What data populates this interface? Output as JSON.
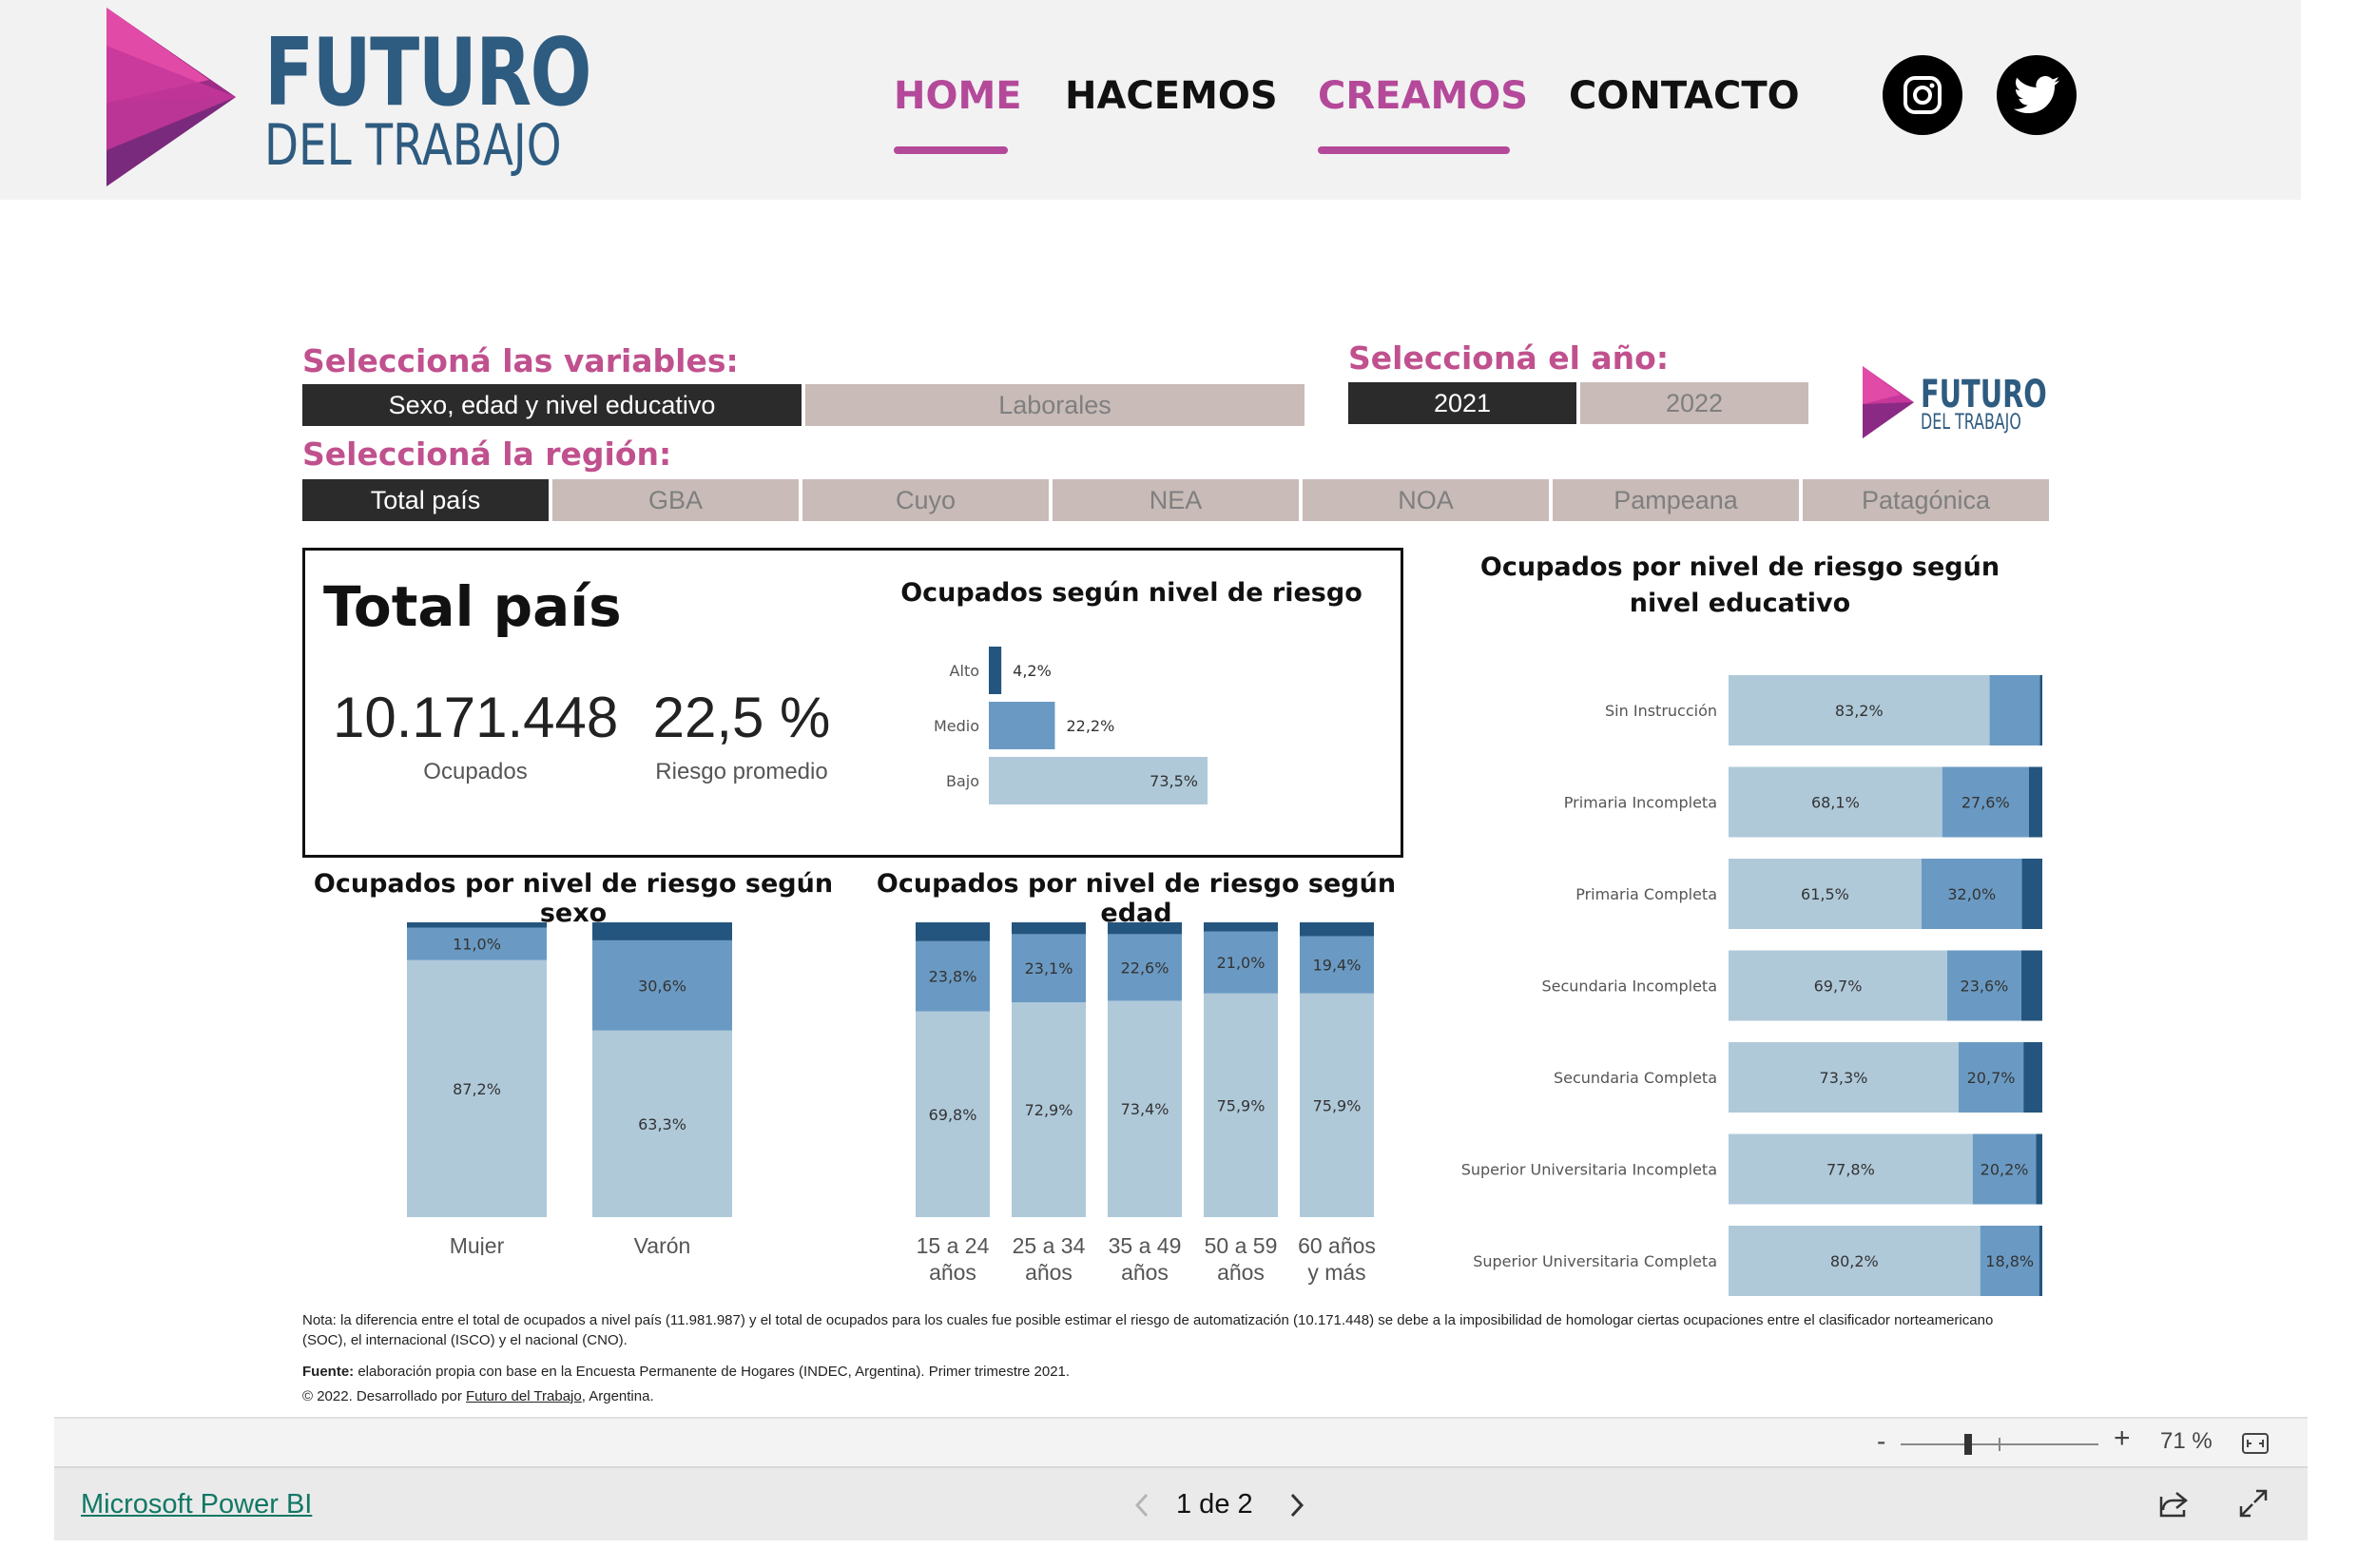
{
  "header": {
    "logo_line1": "FUTURO",
    "logo_line2": "DEL TRABAJO",
    "nav": [
      {
        "label": "HOME",
        "active": true
      },
      {
        "label": "HACEMOS",
        "active": false
      },
      {
        "label": "CREAMOS",
        "active": true
      },
      {
        "label": "CONTACTO",
        "active": false
      }
    ],
    "social_icons": [
      "instagram-icon",
      "twitter-icon"
    ]
  },
  "report": {
    "variables_title": "Seleccioná las variables:",
    "variables": [
      {
        "label": "Sexo, edad y nivel educativo",
        "selected": true
      },
      {
        "label": "Laborales",
        "selected": false
      }
    ],
    "year_title": "Seleccioná el año:",
    "years": [
      {
        "label": "2021",
        "selected": true
      },
      {
        "label": "2022",
        "selected": false
      }
    ],
    "mini_logo_line1": "FUTURO",
    "mini_logo_line2": "DEL TRABAJO",
    "region_title": "Seleccioná la región:",
    "regions": [
      {
        "label": "Total país",
        "selected": true
      },
      {
        "label": "GBA",
        "selected": false
      },
      {
        "label": "Cuyo",
        "selected": false
      },
      {
        "label": "NEA",
        "selected": false
      },
      {
        "label": "NOA",
        "selected": false
      },
      {
        "label": "Pampeana",
        "selected": false
      },
      {
        "label": "Patagónica",
        "selected": false
      }
    ],
    "kpi": {
      "title": "Total país",
      "ocupados_value": "10.171.448",
      "ocupados_label": "Ocupados",
      "riesgo_value": "22,5 %",
      "riesgo_label": "Riesgo promedio"
    },
    "footnote": {
      "nota": "Nota: la diferencia entre el total de ocupados a nivel país (11.981.987) y el total de ocupados para los cuales fue posible estimar el riesgo de automatización (10.171.448) se debe a la imposibilidad de homologar ciertas ocupaciones entre el clasificador norteamericano (SOC), el internacional (ISCO) y el nacional (CNO).",
      "fuente_label": "Fuente:",
      "fuente_text": " elaboración propia con base en la Encuesta Permanente de Hogares (INDEC, Argentina). Primer trimestre 2021.",
      "copyright_prefix": "© 2022. Desarrollado por ",
      "copyright_link": "Futuro del Trabajo",
      "copyright_suffix": ", Argentina."
    },
    "colors": {
      "bajo": "#afc9d9",
      "medio": "#6a9ac3",
      "alto": "#24557e"
    }
  },
  "chart_data": [
    {
      "type": "bar",
      "orientation": "horizontal",
      "title": "Ocupados según nivel de riesgo",
      "categories": [
        "Alto",
        "Medio",
        "Bajo"
      ],
      "values": [
        4.2,
        22.2,
        73.5
      ],
      "labels": [
        "4,2%",
        "22,2%",
        "73,5%"
      ]
    },
    {
      "type": "bar",
      "stacked": true,
      "title": "Ocupados por nivel de riesgo según sexo",
      "categories": [
        "Mujer",
        "Varón"
      ],
      "series": [
        {
          "values": [
            87.2,
            63.3
          ],
          "labels": [
            "87,2%",
            "63,3%"
          ]
        },
        {
          "values": [
            11.0,
            30.6
          ],
          "labels": [
            "11,0%",
            "30,6%"
          ]
        },
        {
          "values": [
            1.8,
            6.1
          ],
          "labels": [
            "",
            ""
          ]
        }
      ]
    },
    {
      "type": "bar",
      "stacked": true,
      "title": "Ocupados por nivel de riesgo según edad",
      "categories": [
        [
          "15 a 24",
          "años"
        ],
        [
          "25 a 34",
          "años"
        ],
        [
          "35 a 49",
          "años"
        ],
        [
          "50 a 59",
          "años"
        ],
        [
          "60 años",
          "y más"
        ]
      ],
      "series": [
        {
          "values": [
            69.8,
            72.9,
            73.4,
            75.9,
            75.9
          ],
          "labels": [
            "69,8%",
            "72,9%",
            "73,4%",
            "75,9%",
            "75,9%"
          ]
        },
        {
          "values": [
            23.8,
            23.1,
            22.6,
            21.0,
            19.4
          ],
          "labels": [
            "23,8%",
            "23,1%",
            "22,6%",
            "21,0%",
            "19,4%"
          ]
        },
        {
          "values": [
            6.4,
            4.0,
            4.0,
            3.1,
            4.7
          ],
          "labels": [
            "",
            "",
            "",
            "",
            ""
          ]
        }
      ]
    },
    {
      "type": "bar",
      "orientation": "horizontal",
      "stacked": true,
      "title": "Ocupados por nivel de riesgo según nivel educativo",
      "categories": [
        "Sin Instrucción",
        "Primaria Incompleta",
        "Primaria Completa",
        "Secundaria Incompleta",
        "Secundaria Completa",
        "Superior Universitaria Incompleta",
        "Superior Universitaria Completa"
      ],
      "series": [
        {
          "values": [
            83.2,
            68.1,
            61.5,
            69.7,
            73.3,
            77.8,
            80.2
          ],
          "labels": [
            "83,2%",
            "68,1%",
            "61,5%",
            "69,7%",
            "73,3%",
            "77,8%",
            "80,2%"
          ]
        },
        {
          "values": [
            16.0,
            27.6,
            32.0,
            23.6,
            20.7,
            20.2,
            18.8
          ],
          "labels": [
            "",
            "27,6%",
            "32,0%",
            "23,6%",
            "20,7%",
            "20,2%",
            "18,8%"
          ]
        },
        {
          "values": [
            0.8,
            4.3,
            6.5,
            6.7,
            6.0,
            2.0,
            1.0
          ],
          "labels": [
            "",
            "",
            "",
            "",
            "",
            "",
            ""
          ]
        }
      ]
    }
  ],
  "powerbi": {
    "zoom_minus": "-",
    "zoom_plus": "+",
    "zoom_level": "71 %",
    "zoom_fraction": 0.32,
    "brand_link": "Microsoft Power BI",
    "page_indicator": "1 de 2"
  }
}
